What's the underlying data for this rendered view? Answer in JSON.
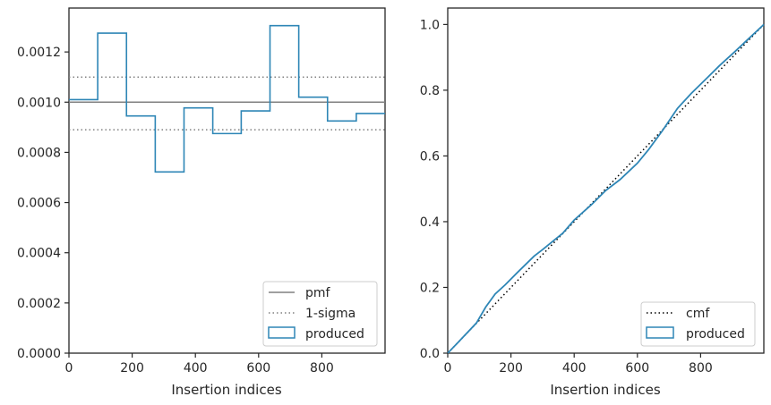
{
  "colors": {
    "produced": "#2e86b6",
    "pmf": "#808080",
    "sigma": "#808080",
    "cmf": "#000000",
    "axes": "#262626"
  },
  "chart_data": [
    {
      "type": "step",
      "xlabel": "Insertion indices",
      "ylabel": "",
      "xlim": [
        0,
        1000
      ],
      "ylim": [
        0,
        0.001375
      ],
      "x_ticks": [
        0,
        200,
        400,
        600,
        800
      ],
      "x_tick_labels": [
        "0",
        "200",
        "400",
        "600",
        "800"
      ],
      "y_ticks": [
        0,
        0.0002,
        0.0004,
        0.0006,
        0.0008,
        0.001,
        0.0012
      ],
      "y_tick_labels": [
        "0.0000",
        "0.0002",
        "0.0004",
        "0.0006",
        "0.0008",
        "0.0010",
        "0.0012"
      ],
      "legend_position": "lower-right",
      "grid": false,
      "series": [
        {
          "name": "pmf",
          "style": "solid",
          "x": [
            0,
            1000
          ],
          "y": [
            0.001,
            0.001
          ]
        },
        {
          "name": "1-sigma",
          "style": "dotted",
          "lines": [
            {
              "x": [
                0,
                1000
              ],
              "y": [
                0.0011,
                0.0011
              ]
            },
            {
              "x": [
                0,
                1000
              ],
              "y": [
                0.00089,
                0.00089
              ]
            }
          ]
        },
        {
          "name": "produced",
          "style": "step",
          "bin_edges": [
            0,
            91,
            182,
            273,
            364,
            455,
            545,
            636,
            727,
            818,
            909,
            1000
          ],
          "values": [
            0.00101,
            0.001275,
            0.000945,
            0.000722,
            0.000977,
            0.000875,
            0.000965,
            0.001305,
            0.00102,
            0.000925,
            0.000955
          ]
        }
      ]
    },
    {
      "type": "line",
      "xlabel": "Insertion indices",
      "ylabel": "",
      "xlim": [
        0,
        1000
      ],
      "ylim": [
        0,
        1.05
      ],
      "x_ticks": [
        0,
        200,
        400,
        600,
        800
      ],
      "x_tick_labels": [
        "0",
        "200",
        "400",
        "600",
        "800"
      ],
      "y_ticks": [
        0,
        0.2,
        0.4,
        0.6,
        0.8,
        1.0
      ],
      "y_tick_labels": [
        "0.0",
        "0.2",
        "0.4",
        "0.6",
        "0.8",
        "1.0"
      ],
      "legend_position": "lower-right",
      "grid": false,
      "series": [
        {
          "name": "cmf",
          "style": "dotted",
          "x": [
            0,
            1000
          ],
          "y": [
            0,
            1.0
          ]
        },
        {
          "name": "produced",
          "style": "solid",
          "x": [
            0,
            40,
            91,
            120,
            150,
            182,
            220,
            273,
            300,
            364,
            400,
            455,
            500,
            545,
            600,
            636,
            680,
            727,
            770,
            818,
            860,
            909,
            950,
            1000
          ],
          "y": [
            0,
            0.04,
            0.092,
            0.14,
            0.18,
            0.208,
            0.245,
            0.295,
            0.315,
            0.365,
            0.405,
            0.452,
            0.495,
            0.528,
            0.578,
            0.62,
            0.678,
            0.745,
            0.79,
            0.835,
            0.875,
            0.918,
            0.955,
            1.0
          ]
        }
      ]
    }
  ],
  "legends": [
    {
      "items": [
        {
          "label": "pmf"
        },
        {
          "label": "1-sigma"
        },
        {
          "label": "produced"
        }
      ]
    },
    {
      "items": [
        {
          "label": "cmf"
        },
        {
          "label": "produced"
        }
      ]
    }
  ]
}
